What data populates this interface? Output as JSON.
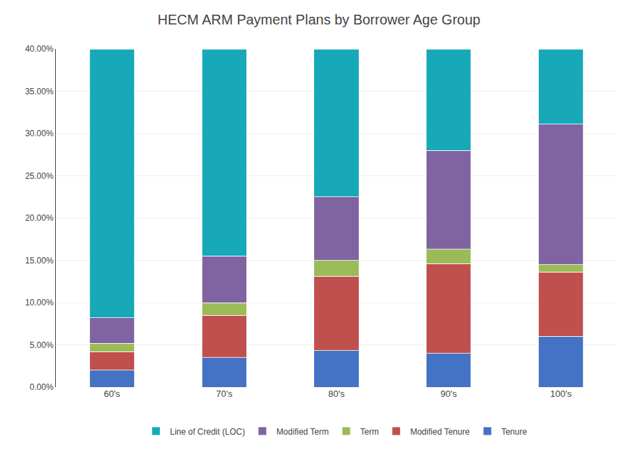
{
  "chart_data": {
    "type": "bar",
    "title": "HECM ARM Payment Plans by Borrower Age Group",
    "categories": [
      "60's",
      "70's",
      "80's",
      "90's",
      "100's"
    ],
    "series": [
      {
        "name": "Tenure",
        "color": "#4472C4",
        "values": [
          0.02,
          0.035,
          0.043,
          0.04,
          0.06
        ]
      },
      {
        "name": "Modified Tenure",
        "color": "#C0504D",
        "values": [
          0.022,
          0.05,
          0.088,
          0.106,
          0.076
        ]
      },
      {
        "name": "Term",
        "color": "#9BBB59",
        "values": [
          0.01,
          0.015,
          0.019,
          0.017,
          0.009
        ]
      },
      {
        "name": "Modified Term",
        "color": "#8064A2",
        "values": [
          0.03,
          0.055,
          0.075,
          0.117,
          0.166
        ]
      },
      {
        "name": "Line of Credit (LOC)",
        "color": "#17A9B8",
        "values": [
          0.318,
          0.245,
          0.175,
          0.12,
          0.089
        ]
      }
    ],
    "stacked": true,
    "ylim": [
      0.0,
      0.4
    ],
    "yticks": [
      {
        "value": 0.0,
        "label": "0.00%"
      },
      {
        "value": 0.05,
        "label": "5.00%"
      },
      {
        "value": 0.1,
        "label": "10.00%"
      },
      {
        "value": 0.15,
        "label": "15.00%"
      },
      {
        "value": 0.2,
        "label": "20.00%"
      },
      {
        "value": 0.25,
        "label": "25.00%"
      },
      {
        "value": 0.3,
        "label": "30.00%"
      },
      {
        "value": 0.35,
        "label": "35.00%"
      },
      {
        "value": 0.4,
        "label": "40.00%"
      }
    ],
    "grid": true,
    "legend": "bottom"
  }
}
